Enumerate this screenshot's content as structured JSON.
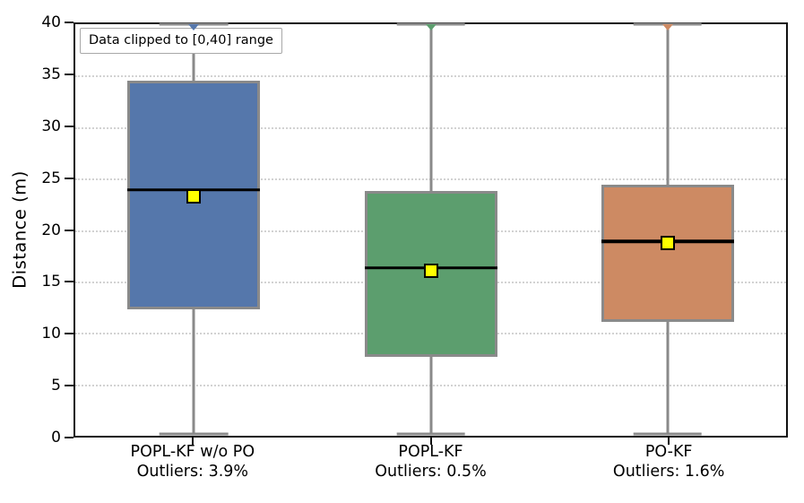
{
  "chart_data": {
    "type": "boxplot",
    "title": "",
    "xlabel": "",
    "ylabel": "Distance (m)",
    "ylim": [
      0,
      40
    ],
    "yticks": [
      0,
      5,
      10,
      15,
      20,
      25,
      30,
      35,
      40
    ],
    "gridline_ticks": [
      5,
      10,
      15,
      20,
      25,
      30,
      35
    ],
    "grid_style": "dotted-horizontal",
    "annotation": "Data clipped to [0,40] range",
    "clip_range": [
      0,
      40
    ],
    "positions": [
      1,
      2,
      3
    ],
    "xlim": [
      0.5,
      3.5
    ],
    "box_width": 0.56,
    "cap_width": 0.29,
    "series": [
      {
        "label": "POPL-KF w/o PO",
        "outliers_label": "Outliers: 3.9%",
        "outlier_pct": 3.9,
        "q1": 12.3,
        "median": 23.9,
        "q3": 34.5,
        "mean": 23.3,
        "whisker_low": 0.2,
        "whisker_high": 40,
        "clipped_fliers_at": 40,
        "fill_color": "#5577ab"
      },
      {
        "label": "POPL-KF",
        "outliers_label": "Outliers: 0.5%",
        "outlier_pct": 0.5,
        "q1": 7.7,
        "median": 16.3,
        "q3": 23.8,
        "mean": 16.0,
        "whisker_low": 0.2,
        "whisker_high": 40,
        "clipped_fliers_at": 40,
        "fill_color": "#5c9e6e"
      },
      {
        "label": "PO-KF",
        "outliers_label": "Outliers: 1.6%",
        "outlier_pct": 1.6,
        "q1": 11.1,
        "median": 18.9,
        "q3": 24.4,
        "mean": 18.7,
        "whisker_low": 0.2,
        "whisker_high": 40,
        "clipped_fliers_at": 40,
        "fill_color": "#cd8a63"
      }
    ],
    "style_colors": {
      "box_edge": "#8a8a8a",
      "whisker": "#8a8a8a",
      "median": "#000000",
      "mean_fill": "#ffff00",
      "mean_edge": "#000000",
      "grid": "#d2d2d2",
      "spine": "#111111"
    }
  }
}
